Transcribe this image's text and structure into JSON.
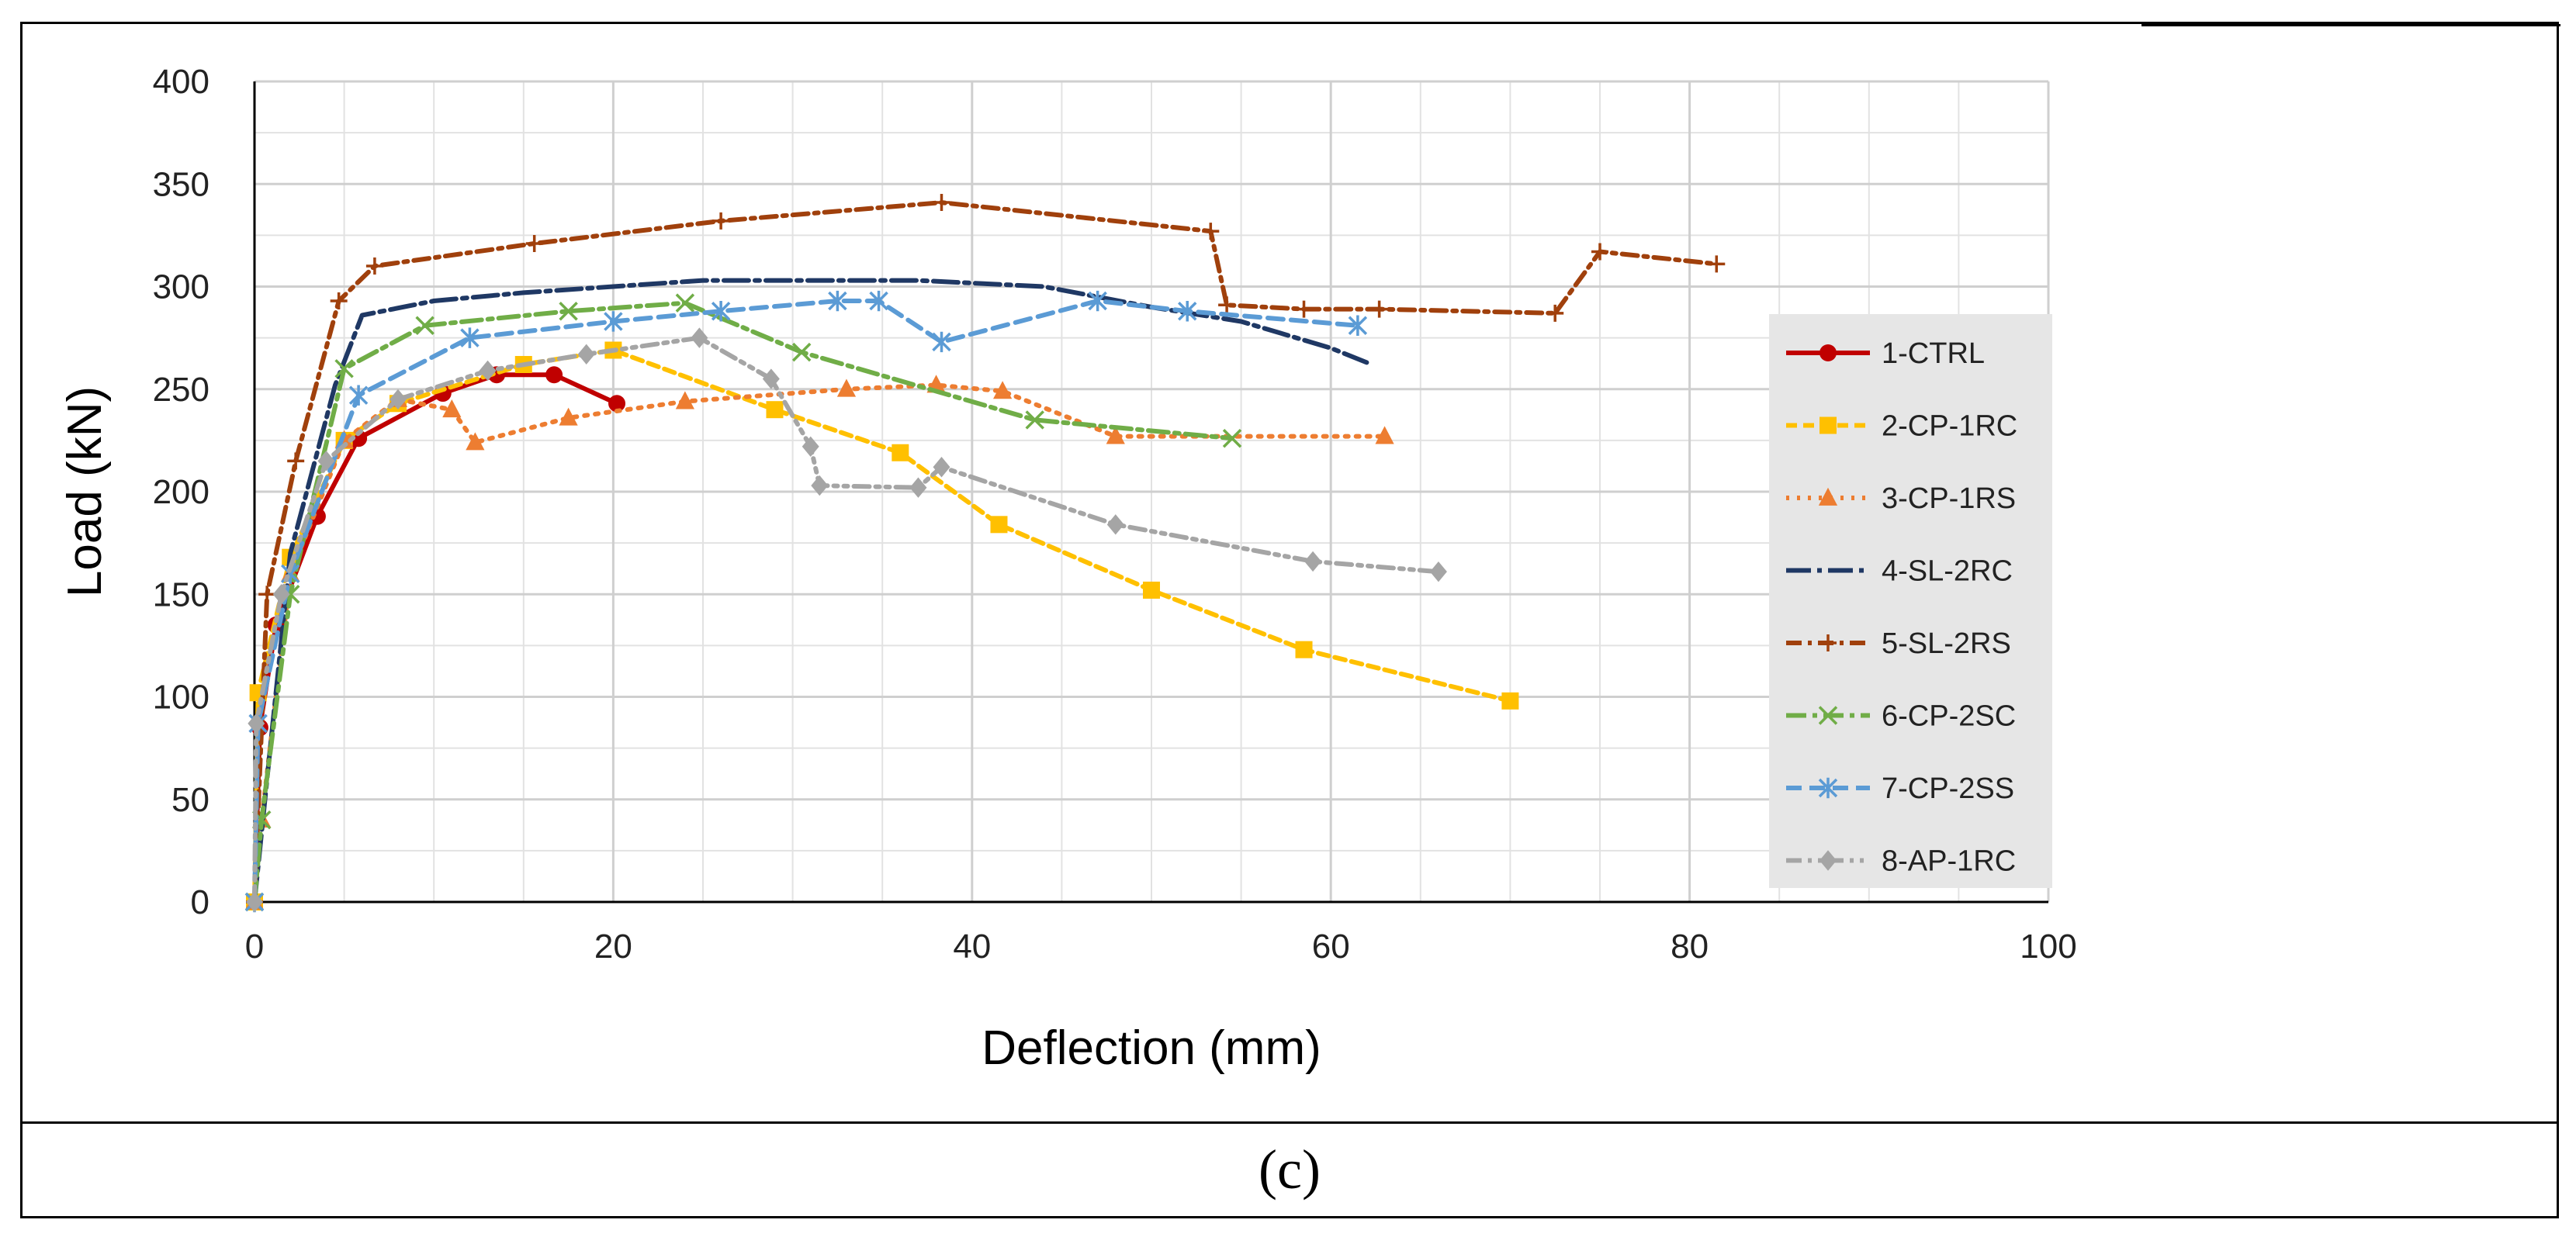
{
  "caption": "(c)",
  "chart_data": {
    "type": "line",
    "title": "",
    "xlabel": "Deflection (mm)",
    "ylabel": "Load (kN)",
    "xlim": [
      0,
      100
    ],
    "ylim": [
      0,
      400
    ],
    "xticks": [
      0,
      20,
      40,
      60,
      80,
      100
    ],
    "yticks": [
      0,
      50,
      100,
      150,
      200,
      250,
      300,
      350,
      400
    ],
    "xtick_labels": [
      "0",
      "20",
      "40",
      "60",
      "80",
      "100"
    ],
    "ytick_labels": [
      "0",
      "50",
      "100",
      "150",
      "200",
      "250",
      "300",
      "350",
      "400"
    ],
    "grid": true,
    "legend_position": "right",
    "series": [
      {
        "name": "1-CTRL",
        "color": "#c00000",
        "dash": "",
        "marker": "circle",
        "x": [
          0,
          0.3,
          1.2,
          3.5,
          5.8,
          10.5,
          13.5,
          16.7,
          20.2
        ],
        "y": [
          0,
          85,
          135,
          188,
          226,
          248,
          257,
          257,
          243
        ]
      },
      {
        "name": "2-CP-1RC",
        "color": "#ffc000",
        "dash": "14,8",
        "marker": "square",
        "x": [
          0,
          0.2,
          2,
          5,
          8,
          15,
          20,
          29,
          36,
          41.5,
          50,
          58.5,
          70
        ],
        "y": [
          0,
          102,
          168,
          225,
          243,
          262,
          269,
          240,
          219,
          184,
          152,
          123,
          98
        ]
      },
      {
        "name": "3-CP-1RS",
        "color": "#ed7d31",
        "dash": "4,10",
        "marker": "triangle",
        "x": [
          0,
          0.4,
          2,
          5,
          8,
          11,
          12.3,
          17.5,
          24,
          33,
          38,
          41.7,
          48,
          63
        ],
        "y": [
          0,
          40,
          160,
          225,
          245,
          240,
          224,
          236,
          244,
          250,
          252,
          249,
          227,
          227
        ]
      },
      {
        "name": "4-SL-2RC",
        "color": "#1f3864",
        "dash": "32,8,6,8",
        "marker": "none",
        "x": [
          0,
          0.7,
          2,
          4.5,
          6,
          10,
          15,
          20,
          25,
          30,
          37,
          44,
          50,
          55,
          60,
          62
        ],
        "y": [
          0,
          60,
          170,
          252,
          286,
          293,
          297,
          300,
          303,
          303,
          303,
          300,
          290,
          283,
          270,
          263
        ]
      },
      {
        "name": "5-SL-2RS",
        "color": "#a0400c",
        "dash": "20,8,5,8",
        "marker": "plus",
        "x": [
          0,
          0.7,
          2.3,
          4.7,
          6.7,
          15.6,
          26,
          38.3,
          53.3,
          54.2,
          58.5,
          62.7,
          72.5,
          75,
          81.5
        ],
        "y": [
          0,
          150,
          215,
          293,
          310,
          321,
          332,
          341,
          327,
          291,
          289,
          289,
          287,
          317,
          311
        ]
      },
      {
        "name": "6-CP-2SC",
        "color": "#70ad47",
        "dash": "26,8,6,8",
        "marker": "x",
        "x": [
          0,
          0.4,
          2,
          5,
          9.5,
          17.5,
          24,
          30.5,
          43.5,
          54.5
        ],
        "y": [
          0,
          40,
          150,
          260,
          281,
          288,
          292,
          268,
          235,
          226
        ]
      },
      {
        "name": "7-CP-2SS",
        "color": "#5b9bd5",
        "dash": "20,10",
        "marker": "asterisk",
        "x": [
          0,
          0.2,
          2,
          5.8,
          12,
          20,
          26,
          32.5,
          34.8,
          38.3,
          47,
          52,
          61.5
        ],
        "y": [
          0,
          87,
          160,
          247,
          275,
          283,
          288,
          293,
          293,
          273,
          293,
          288,
          281
        ]
      },
      {
        "name": "8-AP-1RC",
        "color": "#a5a5a5",
        "dash": "20,8,5,8,5,8",
        "marker": "diamond",
        "x": [
          0,
          0.1,
          1.5,
          4,
          8,
          13,
          18.5,
          24.8,
          28.8,
          31,
          31.5,
          37,
          38.3,
          48,
          59,
          66
        ],
        "y": [
          0,
          87,
          150,
          215,
          245,
          259,
          267,
          275,
          255,
          222,
          203,
          202,
          212,
          184,
          166,
          161
        ]
      }
    ]
  }
}
